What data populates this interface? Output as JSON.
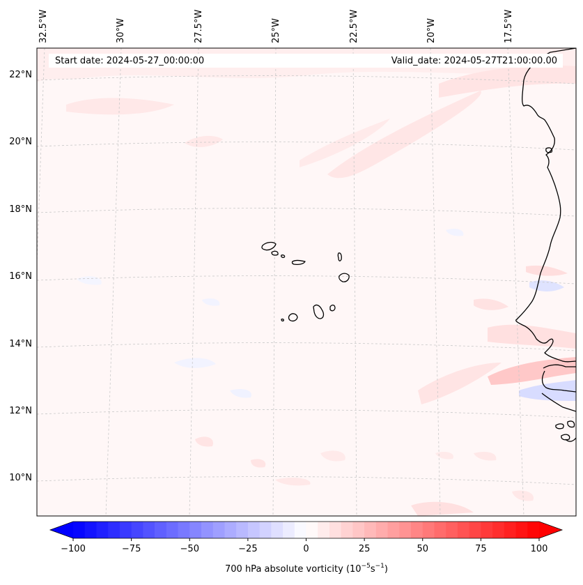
{
  "header": {
    "start_date": "Start date: 2024-05-27_00:00:00",
    "valid_date": "Valid_date: 2024-05-27T21:00:00.00"
  },
  "map": {
    "longitude_labels": [
      "32.5°W",
      "30°W",
      "27.5°W",
      "25°W",
      "22.5°W",
      "20°W",
      "17.5°W"
    ],
    "latitude_labels": [
      "22°N",
      "20°N",
      "18°N",
      "16°N",
      "14°N",
      "12°N",
      "10°N"
    ],
    "field_colors": {
      "background": "#fff7f7",
      "weak_positive": "#ffe6e6",
      "moderate_positive": "#ffd0d0",
      "weak_negative": "#eef0ff",
      "moderate_negative": "#d8dcff",
      "coastline": "#000000",
      "gridline": "#c8c8c8"
    }
  },
  "colorbar": {
    "label_text": "700 hPa absolute vorticity (10",
    "label_exp1": "−5",
    "label_mid": "s",
    "label_exp2": "−1",
    "label_end": ")",
    "min": -100,
    "max": 100,
    "tick_labels": [
      "−100",
      "−75",
      "−50",
      "−25",
      "0",
      "25",
      "50",
      "75",
      "100"
    ],
    "color_min": "#0000ff",
    "color_mid": "#ffffff",
    "color_max": "#ff0000"
  }
}
